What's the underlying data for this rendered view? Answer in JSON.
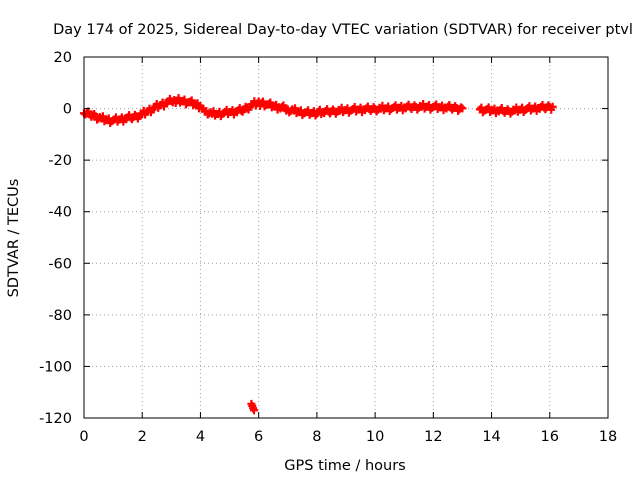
{
  "chart_data": {
    "type": "scatter",
    "title": "Day 174 of 2025, Sidereal Day-to-day VTEC variation (SDTVAR) for receiver ptvl",
    "xlabel": "GPS time / hours",
    "ylabel": "SDTVAR / TECUs",
    "xlim": [
      0,
      18
    ],
    "ylim": [
      -120,
      20
    ],
    "xticks": [
      0,
      2,
      4,
      6,
      8,
      10,
      12,
      14,
      16,
      18
    ],
    "yticks": [
      -120,
      -100,
      -80,
      -60,
      -40,
      -20,
      0,
      20
    ],
    "grid": true,
    "marker": "plus",
    "colors": {
      "series": "#ff0000",
      "grid": "#a0a0a0",
      "frame": "#000000"
    },
    "series": [
      {
        "name": "SDTVAR",
        "points": [
          [
            0.0,
            -1.8
          ],
          [
            0.2,
            -2.3
          ],
          [
            0.4,
            -3.0
          ],
          [
            0.6,
            -3.9
          ],
          [
            0.8,
            -4.5
          ],
          [
            1.0,
            -4.6
          ],
          [
            1.2,
            -4.3
          ],
          [
            1.4,
            -3.9
          ],
          [
            1.6,
            -3.5
          ],
          [
            1.8,
            -3.0
          ],
          [
            2.0,
            -2.2
          ],
          [
            2.2,
            -1.0
          ],
          [
            2.4,
            0.2
          ],
          [
            2.6,
            1.2
          ],
          [
            2.8,
            2.1
          ],
          [
            3.0,
            2.9
          ],
          [
            3.1,
            3.3
          ],
          [
            3.2,
            3.1
          ],
          [
            3.4,
            2.9
          ],
          [
            3.6,
            2.5
          ],
          [
            3.8,
            1.8
          ],
          [
            4.0,
            0.9
          ],
          [
            4.1,
            0.0
          ],
          [
            4.2,
            -1.0
          ],
          [
            4.4,
            -2.0
          ],
          [
            4.6,
            -2.1
          ],
          [
            4.8,
            -1.7
          ],
          [
            5.0,
            -1.4
          ],
          [
            5.2,
            -1.2
          ],
          [
            5.4,
            -0.8
          ],
          [
            5.6,
            0.3
          ],
          [
            5.8,
            1.7
          ],
          [
            6.1,
            2.2
          ],
          [
            6.3,
            1.6
          ],
          [
            6.5,
            1.0
          ],
          [
            6.7,
            0.5
          ],
          [
            6.9,
            0.1
          ],
          [
            7.0,
            -0.3
          ],
          [
            7.2,
            -0.8
          ],
          [
            7.4,
            -1.3
          ],
          [
            7.6,
            -1.6
          ],
          [
            7.8,
            -1.8
          ],
          [
            8.2,
            -1.4
          ],
          [
            8.4,
            -1.2
          ],
          [
            8.6,
            -1.0
          ],
          [
            8.8,
            -0.8
          ],
          [
            9.0,
            -0.6
          ],
          [
            9.2,
            -0.5
          ],
          [
            9.4,
            -0.4
          ],
          [
            9.6,
            -0.3
          ],
          [
            9.8,
            -0.2
          ],
          [
            10.0,
            -0.1
          ],
          [
            10.2,
            0.0
          ],
          [
            10.4,
            0.1
          ],
          [
            10.6,
            0.2
          ],
          [
            10.8,
            0.3
          ],
          [
            11.0,
            0.4
          ],
          [
            11.2,
            0.5
          ],
          [
            11.4,
            0.6
          ],
          [
            11.6,
            0.7
          ],
          [
            11.8,
            0.7
          ],
          [
            12.0,
            0.6
          ],
          [
            12.2,
            0.5
          ],
          [
            12.4,
            0.4
          ],
          [
            12.6,
            0.3
          ],
          [
            12.8,
            0.2
          ],
          [
            13.0,
            0.1
          ],
          [
            13.6,
            -0.3
          ],
          [
            13.8,
            -0.5
          ],
          [
            14.0,
            -0.7
          ],
          [
            14.2,
            -0.7
          ],
          [
            14.4,
            -0.9
          ],
          [
            14.6,
            -1.0
          ],
          [
            14.8,
            -0.7
          ],
          [
            15.0,
            -0.4
          ],
          [
            15.2,
            -0.2
          ],
          [
            15.4,
            0.0
          ],
          [
            15.6,
            0.2
          ],
          [
            15.8,
            0.4
          ],
          [
            16.0,
            0.6
          ],
          [
            16.1,
            0.7
          ],
          [
            5.75,
            -114.5
          ],
          [
            5.78,
            -115.3
          ],
          [
            5.81,
            -116.2
          ],
          [
            5.84,
            -117.0
          ]
        ]
      }
    ]
  }
}
